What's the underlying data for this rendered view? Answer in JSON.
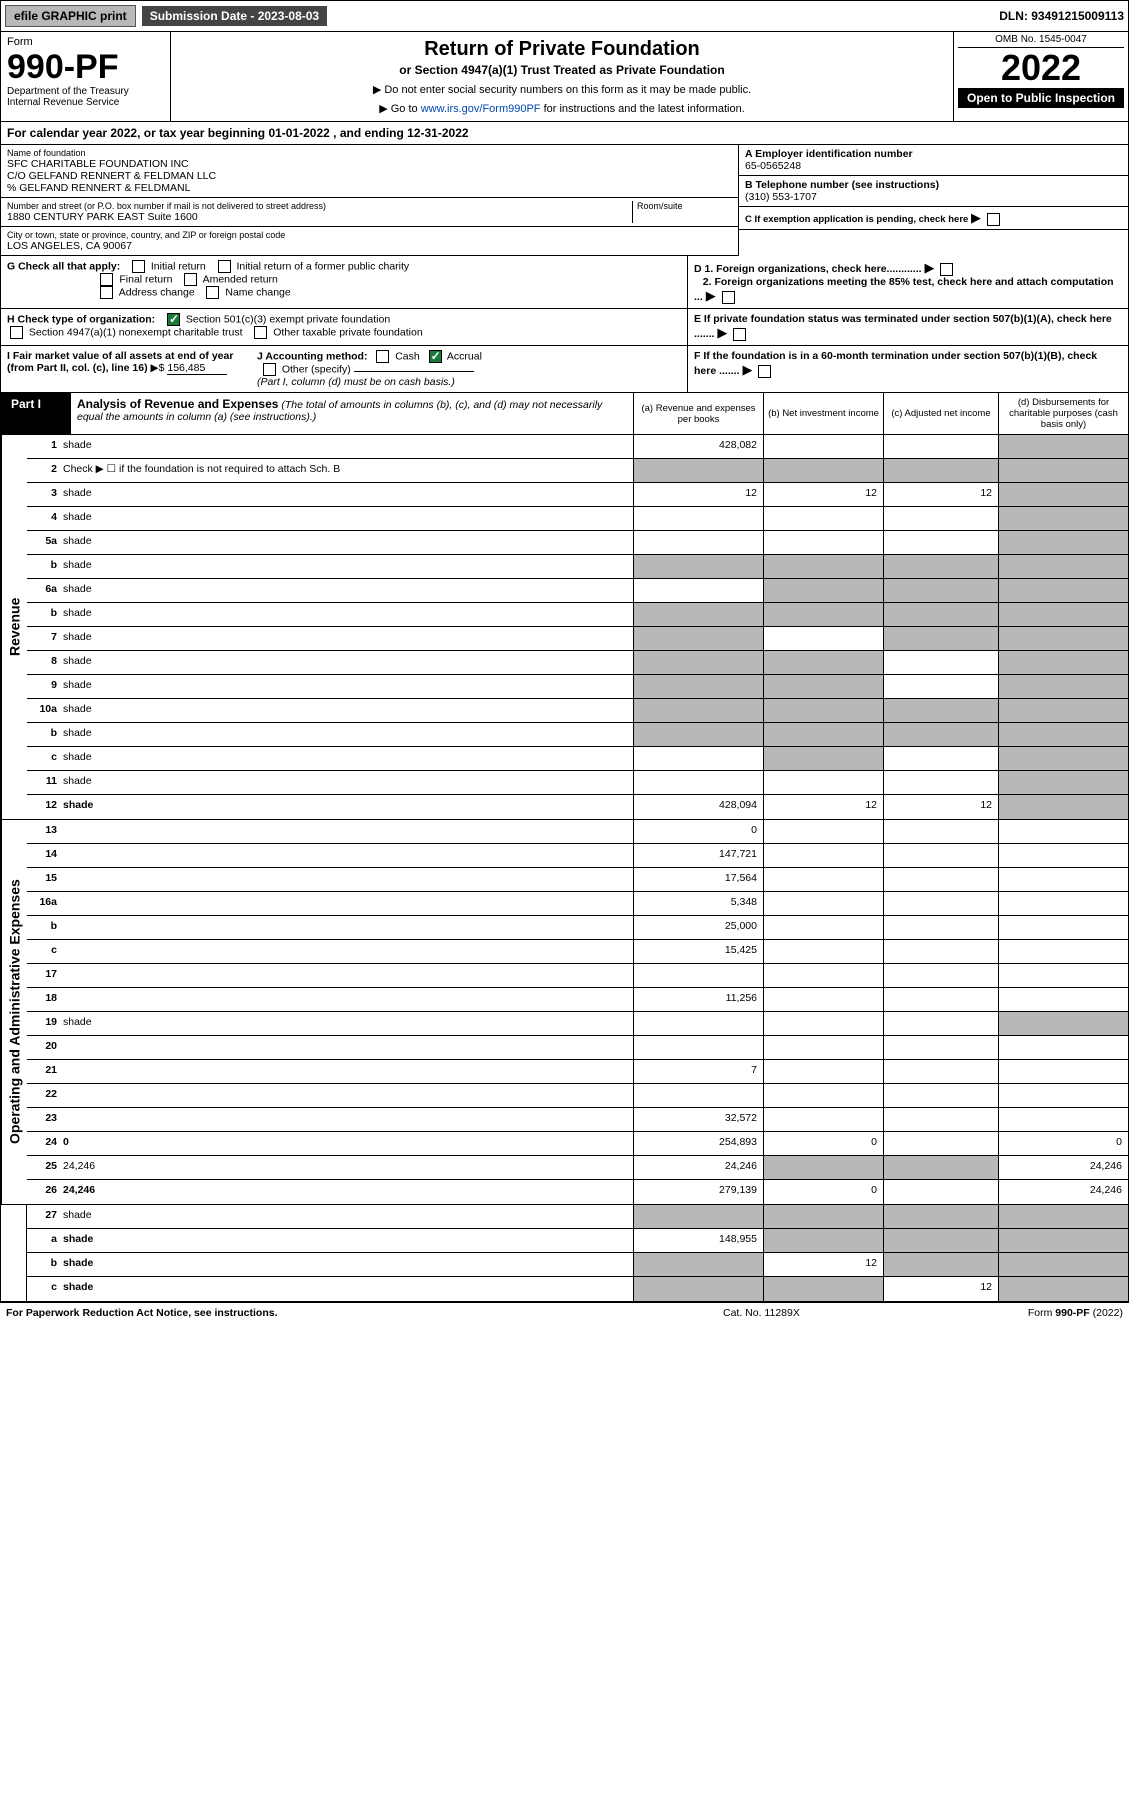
{
  "topbar": {
    "efile": "efile GRAPHIC print",
    "subdate_lbl": "Submission Date - 2023-08-03",
    "dln": "DLN: 93491215009113"
  },
  "header": {
    "form_word": "Form",
    "form_num": "990-PF",
    "dept": "Department of the Treasury\nInternal Revenue Service",
    "title": "Return of Private Foundation",
    "subtitle": "or Section 4947(a)(1) Trust Treated as Private Foundation",
    "note1": "▶ Do not enter social security numbers on this form as it may be made public.",
    "note2": "▶ Go to www.irs.gov/Form990PF for instructions and the latest information.",
    "omb": "OMB No. 1545-0047",
    "year": "2022",
    "open": "Open to Public Inspection"
  },
  "cal_year": "For calendar year 2022, or tax year beginning 01-01-2022                          , and ending 12-31-2022",
  "info": {
    "name_lbl": "Name of foundation",
    "name": "SFC CHARITABLE FOUNDATION INC\nC/O GELFAND RENNERT & FELDMAN LLC\n% GELFAND RENNERT & FELDMANL",
    "addr_lbl": "Number and street (or P.O. box number if mail is not delivered to street address)",
    "addr": "1880 CENTURY PARK EAST Suite 1600",
    "room_lbl": "Room/suite",
    "city_lbl": "City or town, state or province, country, and ZIP or foreign postal code",
    "city": "LOS ANGELES, CA  90067",
    "ein_lbl": "A Employer identification number",
    "ein": "65-0565248",
    "tel_lbl": "B Telephone number (see instructions)",
    "tel": "(310) 553-1707",
    "c_lbl": "C If exemption application is pending, check here",
    "d1": "D 1. Foreign organizations, check here............",
    "d2": "2. Foreign organizations meeting the 85% test, check here and attach computation ...",
    "e": "E  If private foundation status was terminated under section 507(b)(1)(A), check here .......",
    "f": "F  If the foundation is in a 60-month termination under section 507(b)(1)(B), check here .......",
    "g_lbl": "G Check all that apply:",
    "g_opts": [
      "Initial return",
      "Initial return of a former public charity",
      "Final return",
      "Amended return",
      "Address change",
      "Name change"
    ],
    "h_lbl": "H Check type of organization:",
    "h1": "Section 501(c)(3) exempt private foundation",
    "h2": "Section 4947(a)(1) nonexempt charitable trust",
    "h3": "Other taxable private foundation",
    "i_lbl": "I Fair market value of all assets at end of year (from Part II, col. (c), line 16)",
    "i_val": "156,485",
    "j_lbl": "J Accounting method:",
    "j_cash": "Cash",
    "j_accrual": "Accrual",
    "j_other": "Other (specify)",
    "j_note": "(Part I, column (d) must be on cash basis.)"
  },
  "part1": {
    "label": "Part I",
    "title": "Analysis of Revenue and Expenses",
    "title_note": "(The total of amounts in columns (b), (c), and (d) may not necessarily equal the amounts in column (a) (see instructions).)",
    "col_a": "(a) Revenue and expenses per books",
    "col_b": "(b) Net investment income",
    "col_c": "(c) Adjusted net income",
    "col_d": "(d) Disbursements for charitable purposes (cash basis only)"
  },
  "side_rev": "Revenue",
  "side_exp": "Operating and Administrative Expenses",
  "rows_rev": [
    {
      "n": "1",
      "d": "shade",
      "a": "428,082",
      "b": "",
      "c": ""
    },
    {
      "n": "2",
      "d": "Check ▶ ☐ if the foundation is not required to attach Sch. B",
      "nocells": true
    },
    {
      "n": "3",
      "d": "shade",
      "a": "12",
      "b": "12",
      "c": "12"
    },
    {
      "n": "4",
      "d": "shade",
      "a": "",
      "b": "",
      "c": ""
    },
    {
      "n": "5a",
      "d": "shade",
      "a": "",
      "b": "",
      "c": ""
    },
    {
      "n": "b",
      "d": "shade",
      "halfline": true,
      "ashade": true,
      "bshade": true,
      "cshade": true
    },
    {
      "n": "6a",
      "d": "shade",
      "a": "",
      "bshade": true,
      "cshade": true
    },
    {
      "n": "b",
      "d": "shade",
      "halfline": true,
      "ashade": true,
      "bshade": true,
      "cshade": true
    },
    {
      "n": "7",
      "d": "shade",
      "ashade": true,
      "b": "",
      "cshade": true
    },
    {
      "n": "8",
      "d": "shade",
      "ashade": true,
      "bshade": true,
      "c": ""
    },
    {
      "n": "9",
      "d": "shade",
      "ashade": true,
      "bshade": true,
      "c": ""
    },
    {
      "n": "10a",
      "d": "shade",
      "halfline": true,
      "ashade": true,
      "bshade": true,
      "cshade": true
    },
    {
      "n": "b",
      "d": "shade",
      "halfline": true,
      "ashade": true,
      "bshade": true,
      "cshade": true
    },
    {
      "n": "c",
      "d": "shade",
      "a": "",
      "bshade": true,
      "c": ""
    },
    {
      "n": "11",
      "d": "shade",
      "a": "",
      "b": "",
      "c": ""
    },
    {
      "n": "12",
      "d": "shade",
      "bold": true,
      "a": "428,094",
      "b": "12",
      "c": "12"
    }
  ],
  "rows_exp": [
    {
      "n": "13",
      "d": "",
      "a": "0",
      "b": "",
      "c": ""
    },
    {
      "n": "14",
      "d": "",
      "a": "147,721",
      "b": "",
      "c": ""
    },
    {
      "n": "15",
      "d": "",
      "a": "17,564",
      "b": "",
      "c": ""
    },
    {
      "n": "16a",
      "d": "",
      "a": "5,348",
      "b": "",
      "c": ""
    },
    {
      "n": "b",
      "d": "",
      "a": "25,000",
      "b": "",
      "c": ""
    },
    {
      "n": "c",
      "d": "",
      "a": "15,425",
      "b": "",
      "c": ""
    },
    {
      "n": "17",
      "d": "",
      "a": "",
      "b": "",
      "c": ""
    },
    {
      "n": "18",
      "d": "",
      "a": "11,256",
      "b": "",
      "c": ""
    },
    {
      "n": "19",
      "d": "shade",
      "a": "",
      "b": "",
      "c": ""
    },
    {
      "n": "20",
      "d": "",
      "a": "",
      "b": "",
      "c": ""
    },
    {
      "n": "21",
      "d": "",
      "a": "7",
      "b": "",
      "c": ""
    },
    {
      "n": "22",
      "d": "",
      "a": "",
      "b": "",
      "c": ""
    },
    {
      "n": "23",
      "d": "",
      "a": "32,572",
      "b": "",
      "c": ""
    },
    {
      "n": "24",
      "d": "0",
      "bold": true,
      "a": "254,893",
      "b": "0",
      "c": ""
    },
    {
      "n": "25",
      "d": "24,246",
      "a": "24,246",
      "bshade": true,
      "cshade": true
    },
    {
      "n": "26",
      "d": "24,246",
      "bold": true,
      "a": "279,139",
      "b": "0",
      "c": ""
    }
  ],
  "rows_final": [
    {
      "n": "27",
      "d": "shade",
      "ashade": true,
      "bshade": true,
      "cshade": true
    },
    {
      "n": "a",
      "d": "shade",
      "bold": true,
      "a": "148,955",
      "bshade": true,
      "cshade": true
    },
    {
      "n": "b",
      "d": "shade",
      "bold": true,
      "ashade": true,
      "b": "12",
      "cshade": true
    },
    {
      "n": "c",
      "d": "shade",
      "bold": true,
      "ashade": true,
      "bshade": true,
      "c": "12"
    }
  ],
  "footer": {
    "left": "For Paperwork Reduction Act Notice, see instructions.",
    "mid": "Cat. No. 11289X",
    "right": "Form 990-PF (2022)"
  }
}
